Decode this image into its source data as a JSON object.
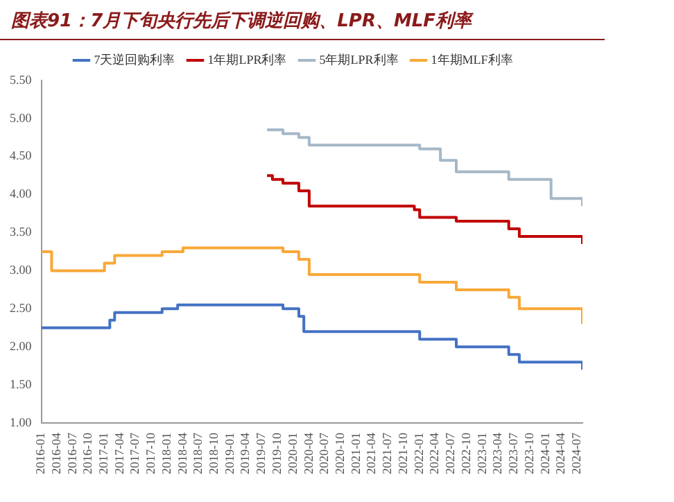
{
  "chart_data": {
    "type": "step",
    "title": "图表91：7月下旬央行先后下调逆回购、LPR、MLF利率",
    "legend": "top",
    "xlim": [
      "2016-01",
      "2024-08"
    ],
    "xticks": [
      "2016-01",
      "2016-04",
      "2016-07",
      "2016-10",
      "2017-01",
      "2017-04",
      "2017-07",
      "2017-10",
      "2018-01",
      "2018-04",
      "2018-07",
      "2018-10",
      "2019-01",
      "2019-04",
      "2019-07",
      "2019-10",
      "2020-01",
      "2020-04",
      "2020-07",
      "2020-10",
      "2021-01",
      "2021-04",
      "2021-07",
      "2021-10",
      "2022-01",
      "2022-04",
      "2022-07",
      "2022-10",
      "2023-01",
      "2023-04",
      "2023-07",
      "2023-10",
      "2024-01",
      "2024-04",
      "2024-07"
    ],
    "ylim": [
      1,
      5.5
    ],
    "yticks": [
      {
        "value": 1,
        "label": "1.00"
      },
      {
        "value": 1.5,
        "label": "1.50"
      },
      {
        "value": 2,
        "label": "2.00"
      },
      {
        "value": 2.5,
        "label": "2.50"
      },
      {
        "value": 3,
        "label": "3.00"
      },
      {
        "value": 3.5,
        "label": "3.50"
      },
      {
        "value": 4,
        "label": "4.00"
      },
      {
        "value": 4.5,
        "label": "4.50"
      },
      {
        "value": 5,
        "label": "5.00"
      },
      {
        "value": 5.5,
        "label": "5.50"
      }
    ],
    "series": [
      {
        "name": "7天逆回购利率",
        "color": "#4472c4",
        "x": [
          "2016-01",
          "2017-02",
          "2017-03",
          "2017-12",
          "2018-03",
          "2019-11",
          "2020-02",
          "2020-03",
          "2022-01",
          "2022-08",
          "2023-06",
          "2023-08",
          "2024-07",
          "2024-08"
        ],
        "values": [
          2.25,
          2.35,
          2.45,
          2.5,
          2.55,
          2.5,
          2.4,
          2.2,
          2.1,
          2.0,
          1.9,
          1.8,
          1.8,
          1.7
        ]
      },
      {
        "name": "1年期LPR利率",
        "color": "#c00000",
        "x": [
          "2019-08",
          "2019-09",
          "2019-11",
          "2020-02",
          "2020-04",
          "2021-12",
          "2022-01",
          "2022-08",
          "2023-06",
          "2023-08",
          "2024-07",
          "2024-08"
        ],
        "values": [
          4.25,
          4.2,
          4.15,
          4.05,
          3.85,
          3.8,
          3.7,
          3.65,
          3.55,
          3.45,
          3.45,
          3.35
        ]
      },
      {
        "name": "5年期LPR利率",
        "color": "#a5b8c8",
        "x": [
          "2019-08",
          "2019-11",
          "2020-02",
          "2020-04",
          "2022-01",
          "2022-05",
          "2022-08",
          "2023-06",
          "2024-02",
          "2024-07",
          "2024-08"
        ],
        "values": [
          4.85,
          4.8,
          4.75,
          4.65,
          4.6,
          4.45,
          4.3,
          4.2,
          3.95,
          3.95,
          3.85
        ]
      },
      {
        "name": "1年期MLF利率",
        "color": "#f8a838",
        "x": [
          "2016-01",
          "2016-03",
          "2017-01",
          "2017-03",
          "2017-12",
          "2018-04",
          "2019-11",
          "2020-02",
          "2020-04",
          "2022-01",
          "2022-08",
          "2023-06",
          "2023-08",
          "2024-07",
          "2024-08"
        ],
        "values": [
          3.25,
          3.0,
          3.1,
          3.2,
          3.25,
          3.3,
          3.25,
          3.15,
          2.95,
          2.85,
          2.75,
          2.65,
          2.5,
          2.5,
          2.3
        ]
      }
    ]
  }
}
